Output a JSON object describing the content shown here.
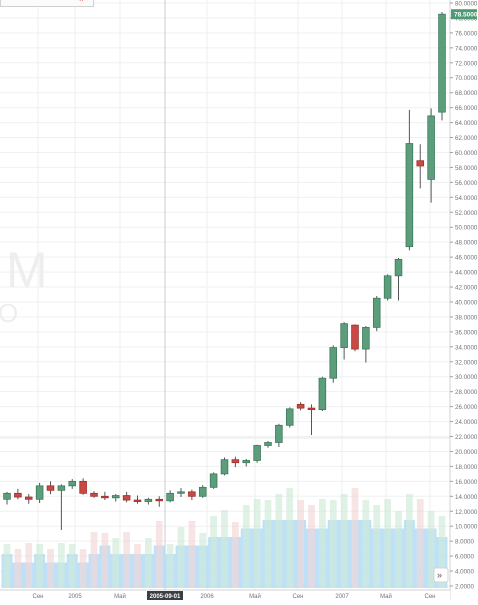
{
  "chart_data": {
    "type": "candlestick",
    "price_axis": {
      "ticks": [
        "2.0000",
        "4.0000",
        "6.0000",
        "8.0000",
        "10.0000",
        "12.0000",
        "14.0000",
        "16.0000",
        "18.0000",
        "20.0000",
        "22.0000",
        "24.0000",
        "26.0000",
        "28.0000",
        "30.0000",
        "32.0000",
        "34.0000",
        "36.0000",
        "38.0000",
        "40.0000",
        "42.0000",
        "44.0000",
        "46.0000",
        "48.0000",
        "50.0000",
        "52.0000",
        "54.0000",
        "56.0000",
        "58.0000",
        "60.0000",
        "62.0000",
        "64.0000",
        "66.0000",
        "68.0000",
        "70.0000",
        "72.0000",
        "74.0000",
        "76.0000",
        "78.0000",
        "80.0000"
      ],
      "ylim": [
        2,
        80
      ],
      "last_price": "78.5000"
    },
    "time_axis": {
      "labels": [
        "Сен",
        "2005",
        "Май",
        "2005-09-01",
        "2006",
        "Май",
        "Сен",
        "2007",
        "Май",
        "Сен"
      ],
      "highlighted": "2005-09-01"
    },
    "candles": [
      {
        "o": 13.6,
        "h": 14.6,
        "l": 12.9,
        "c": 14.4
      },
      {
        "o": 14.4,
        "h": 15.0,
        "l": 13.6,
        "c": 13.9
      },
      {
        "o": 13.9,
        "h": 14.3,
        "l": 13.0,
        "c": 13.6
      },
      {
        "o": 13.6,
        "h": 15.8,
        "l": 13.1,
        "c": 15.4
      },
      {
        "o": 15.4,
        "h": 16.0,
        "l": 14.3,
        "c": 14.8
      },
      {
        "o": 14.8,
        "h": 15.6,
        "l": 9.5,
        "c": 15.4
      },
      {
        "o": 15.4,
        "h": 16.3,
        "l": 15.0,
        "c": 16.0
      },
      {
        "o": 16.0,
        "h": 16.4,
        "l": 14.2,
        "c": 14.4
      },
      {
        "o": 14.4,
        "h": 14.7,
        "l": 13.8,
        "c": 14.0
      },
      {
        "o": 14.0,
        "h": 14.6,
        "l": 13.5,
        "c": 13.8
      },
      {
        "o": 13.8,
        "h": 14.3,
        "l": 13.3,
        "c": 14.1
      },
      {
        "o": 14.1,
        "h": 14.6,
        "l": 13.2,
        "c": 13.5
      },
      {
        "o": 13.5,
        "h": 14.1,
        "l": 13.0,
        "c": 13.3
      },
      {
        "o": 13.3,
        "h": 13.8,
        "l": 12.9,
        "c": 13.6
      },
      {
        "o": 13.6,
        "h": 14.0,
        "l": 12.6,
        "c": 13.4
      },
      {
        "o": 13.4,
        "h": 14.8,
        "l": 13.2,
        "c": 14.4
      },
      {
        "o": 14.4,
        "h": 15.1,
        "l": 13.9,
        "c": 14.6
      },
      {
        "o": 14.6,
        "h": 14.9,
        "l": 13.5,
        "c": 14.0
      },
      {
        "o": 14.0,
        "h": 15.5,
        "l": 13.8,
        "c": 15.2
      },
      {
        "o": 15.2,
        "h": 17.2,
        "l": 15.0,
        "c": 17.0
      },
      {
        "o": 17.0,
        "h": 19.2,
        "l": 16.8,
        "c": 18.9
      },
      {
        "o": 18.9,
        "h": 19.3,
        "l": 17.9,
        "c": 18.5
      },
      {
        "o": 18.5,
        "h": 19.0,
        "l": 18.0,
        "c": 18.8
      },
      {
        "o": 18.8,
        "h": 20.9,
        "l": 18.5,
        "c": 20.8
      },
      {
        "o": 20.8,
        "h": 21.4,
        "l": 20.5,
        "c": 21.2
      },
      {
        "o": 21.2,
        "h": 23.7,
        "l": 20.6,
        "c": 23.5
      },
      {
        "o": 23.5,
        "h": 25.9,
        "l": 23.2,
        "c": 25.7
      },
      {
        "o": 26.3,
        "h": 26.6,
        "l": 25.5,
        "c": 25.8
      },
      {
        "o": 25.8,
        "h": 26.3,
        "l": 22.2,
        "c": 25.6
      },
      {
        "o": 25.6,
        "h": 30.0,
        "l": 25.4,
        "c": 29.8
      },
      {
        "o": 29.8,
        "h": 34.2,
        "l": 29.2,
        "c": 33.9
      },
      {
        "o": 33.9,
        "h": 37.3,
        "l": 32.3,
        "c": 37.1
      },
      {
        "o": 36.9,
        "h": 37.0,
        "l": 33.4,
        "c": 33.7
      },
      {
        "o": 33.7,
        "h": 36.8,
        "l": 31.9,
        "c": 36.6
      },
      {
        "o": 36.6,
        "h": 40.8,
        "l": 36.1,
        "c": 40.5
      },
      {
        "o": 40.5,
        "h": 43.7,
        "l": 40.2,
        "c": 43.5
      },
      {
        "o": 43.5,
        "h": 45.9,
        "l": 40.2,
        "c": 45.7
      },
      {
        "o": 47.4,
        "h": 65.7,
        "l": 46.9,
        "c": 61.2
      },
      {
        "o": 58.9,
        "h": 61.1,
        "l": 55.2,
        "c": 58.2
      },
      {
        "o": 56.4,
        "h": 65.9,
        "l": 53.3,
        "c": 64.9
      },
      {
        "o": 65.4,
        "h": 78.8,
        "l": 64.3,
        "c": 78.5
      }
    ],
    "volume": [
      4,
      3,
      3,
      4,
      3,
      3,
      4,
      3,
      4,
      5,
      4,
      4,
      4,
      4,
      5,
      4,
      5,
      5,
      5,
      6,
      6,
      6,
      7,
      7,
      8,
      8,
      8,
      8,
      7,
      7,
      8,
      8,
      8,
      8,
      7,
      7,
      7,
      8,
      7,
      7,
      6
    ]
  }
}
